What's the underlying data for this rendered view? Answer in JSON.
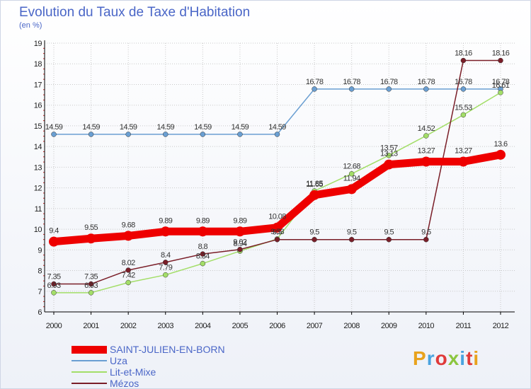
{
  "title": "Evolution du Taux de Taxe d'Habitation",
  "unit": "(en %)",
  "logo": "Proxiti",
  "colors": {
    "title": "#4a66c7",
    "grid": "#c9c9c9",
    "axis": "#000000"
  },
  "chart_data": {
    "type": "line",
    "title": "Evolution du Taux de Taxe d'Habitation",
    "ylabel": "(en %)",
    "xlabel": "",
    "ylim": [
      6,
      19
    ],
    "grid": true,
    "legend_position": "bottom-left",
    "categories": [
      "2000",
      "2001",
      "2002",
      "2003",
      "2004",
      "2005",
      "2006",
      "2007",
      "2008",
      "2009",
      "2010",
      "2011",
      "2012"
    ],
    "series": [
      {
        "name": "SAINT-JULIEN-EN-BORN",
        "color": "#ee0000",
        "width": 11,
        "marker": 7,
        "values": [
          9.4,
          9.55,
          9.68,
          9.89,
          9.89,
          9.89,
          10.08,
          11.65,
          11.94,
          13.13,
          13.27,
          13.27,
          13.6
        ]
      },
      {
        "name": "Uza",
        "color": "#6a9fd2",
        "width": 1.5,
        "marker": 3.5,
        "values": [
          14.59,
          14.59,
          14.59,
          14.59,
          14.59,
          14.59,
          14.59,
          16.78,
          16.78,
          16.78,
          16.78,
          16.78,
          16.78
        ]
      },
      {
        "name": "Lit-et-Mixe",
        "color": "#a3de68",
        "width": 1.5,
        "marker": 3.5,
        "values": [
          6.93,
          6.93,
          7.42,
          7.79,
          8.34,
          8.94,
          9.53,
          11.85,
          12.68,
          13.57,
          14.52,
          15.53,
          16.61
        ]
      },
      {
        "name": "Mézos",
        "color": "#7a1e28",
        "width": 1.5,
        "marker": 3.5,
        "values": [
          7.35,
          7.35,
          8.02,
          8.4,
          8.8,
          9.02,
          9.5,
          9.5,
          9.5,
          9.5,
          9.5,
          18.16,
          18.16
        ]
      }
    ]
  }
}
